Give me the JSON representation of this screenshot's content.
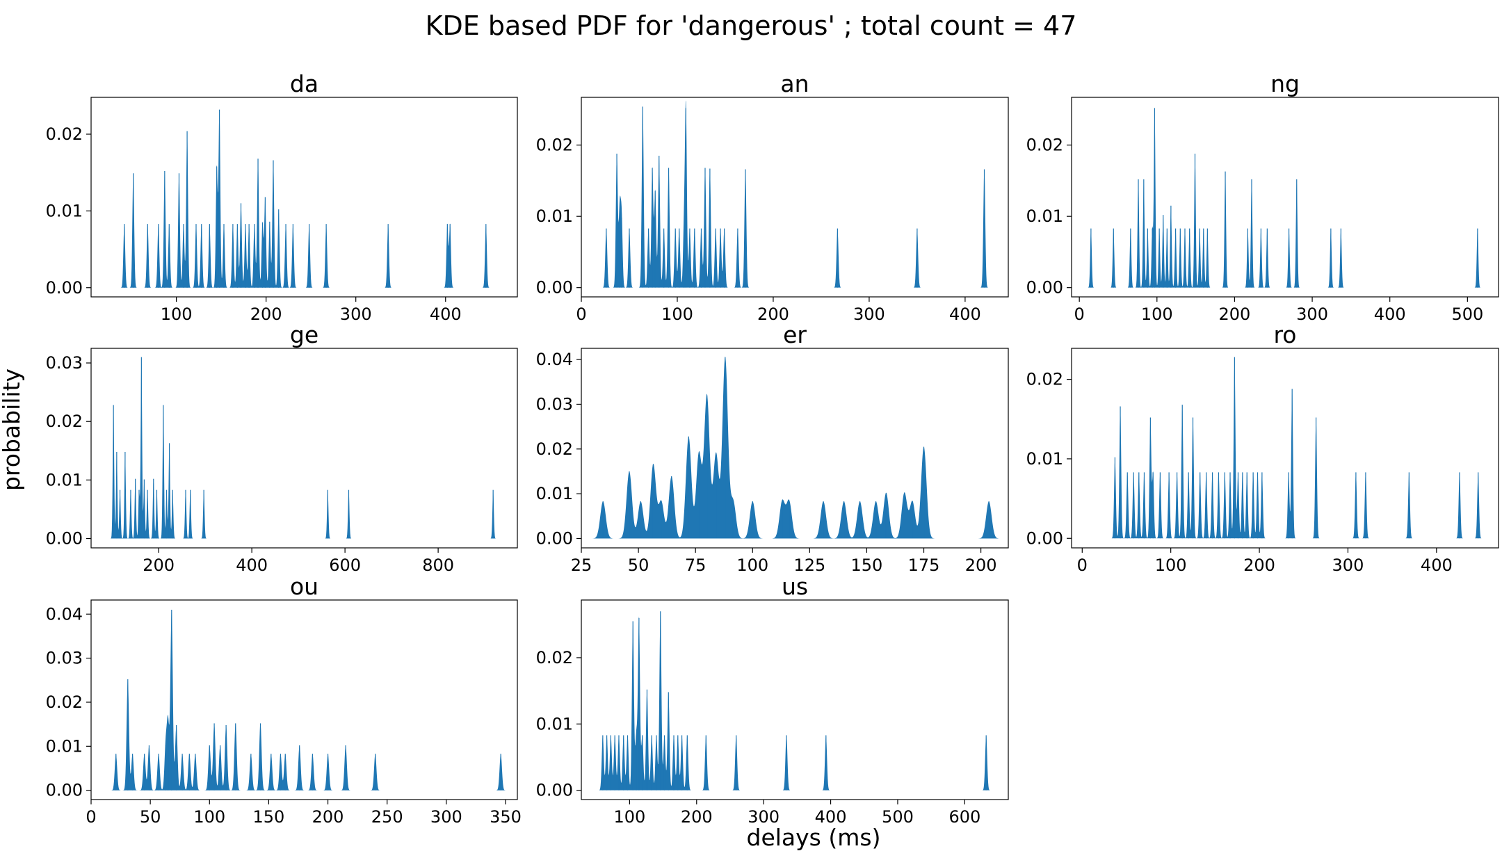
{
  "figure": {
    "title": "KDE based PDF for 'dangerous' ; total count = 47",
    "xlabel": "delays (ms)",
    "ylabel": "probability"
  },
  "chart_data": [
    {
      "type": "area",
      "title": "da",
      "color": "#1f77b4",
      "xlim": [
        5,
        480
      ],
      "ylim": [
        -0.0012,
        0.0248
      ],
      "xticks": [
        100,
        200,
        300,
        400
      ],
      "yticks": [
        0.0,
        0.01,
        0.02
      ],
      "ytick_labels": [
        "0.00",
        "0.01",
        "0.02"
      ],
      "bandwidth": 1.0,
      "peaks": [
        [
          42,
          0.0083
        ],
        [
          52,
          0.0149
        ],
        [
          68,
          0.0083
        ],
        [
          80,
          0.0083
        ],
        [
          87,
          0.0152
        ],
        [
          92,
          0.0083
        ],
        [
          103,
          0.0149
        ],
        [
          108,
          0.0083
        ],
        [
          112,
          0.0204
        ],
        [
          122,
          0.0083
        ],
        [
          128,
          0.0083
        ],
        [
          137,
          0.0083
        ],
        [
          145,
          0.0158
        ],
        [
          148,
          0.0232
        ],
        [
          153,
          0.0083
        ],
        [
          163,
          0.0083
        ],
        [
          168,
          0.0083
        ],
        [
          172,
          0.011
        ],
        [
          177,
          0.0083
        ],
        [
          181,
          0.0083
        ],
        [
          187,
          0.0083
        ],
        [
          191,
          0.0168
        ],
        [
          196,
          0.0085
        ],
        [
          199,
          0.0118
        ],
        [
          204,
          0.0086
        ],
        [
          208,
          0.0166
        ],
        [
          214,
          0.0102
        ],
        [
          222,
          0.0083
        ],
        [
          230,
          0.0083
        ],
        [
          248,
          0.0083
        ],
        [
          267,
          0.0083
        ],
        [
          336,
          0.0083
        ],
        [
          402,
          0.0083
        ],
        [
          405,
          0.0083
        ],
        [
          445,
          0.0083
        ]
      ]
    },
    {
      "type": "area",
      "title": "an",
      "color": "#1f77b4",
      "xlim": [
        0,
        445
      ],
      "ylim": [
        -0.0013,
        0.0267
      ],
      "xticks": [
        0,
        100,
        200,
        300,
        400
      ],
      "yticks": [
        0.0,
        0.01,
        0.02
      ],
      "ytick_labels": [
        "0.00",
        "0.01",
        "0.02"
      ],
      "bandwidth": 1.0,
      "peaks": [
        [
          26,
          0.0083
        ],
        [
          37,
          0.0188
        ],
        [
          40,
          0.011
        ],
        [
          42,
          0.0098
        ],
        [
          50,
          0.0083
        ],
        [
          64,
          0.0254
        ],
        [
          70,
          0.0083
        ],
        [
          74,
          0.0168
        ],
        [
          77,
          0.0136
        ],
        [
          81,
          0.0185
        ],
        [
          86,
          0.0083
        ],
        [
          91,
          0.0168
        ],
        [
          98,
          0.0083
        ],
        [
          102,
          0.0083
        ],
        [
          107,
          0.0083
        ],
        [
          109,
          0.0252
        ],
        [
          113,
          0.0083
        ],
        [
          118,
          0.0083
        ],
        [
          125,
          0.0083
        ],
        [
          129,
          0.0168
        ],
        [
          134,
          0.0167
        ],
        [
          140,
          0.0083
        ],
        [
          145,
          0.0083
        ],
        [
          149,
          0.0083
        ],
        [
          163,
          0.0083
        ],
        [
          171,
          0.0166
        ],
        [
          267,
          0.0083
        ],
        [
          350,
          0.0083
        ],
        [
          420,
          0.0166
        ]
      ]
    },
    {
      "type": "area",
      "title": "ng",
      "color": "#1f77b4",
      "xlim": [
        -10,
        540
      ],
      "ylim": [
        -0.0013,
        0.0267
      ],
      "xticks": [
        0,
        100,
        200,
        300,
        400,
        500
      ],
      "yticks": [
        0.0,
        0.01,
        0.02
      ],
      "ytick_labels": [
        "0.00",
        "0.01",
        "0.02"
      ],
      "bandwidth": 1.0,
      "peaks": [
        [
          15,
          0.0083
        ],
        [
          44,
          0.0083
        ],
        [
          66,
          0.0083
        ],
        [
          76,
          0.0152
        ],
        [
          83,
          0.0152
        ],
        [
          88,
          0.0083
        ],
        [
          94,
          0.0083
        ],
        [
          97,
          0.0252
        ],
        [
          103,
          0.0083
        ],
        [
          108,
          0.0102
        ],
        [
          113,
          0.0083
        ],
        [
          118,
          0.0115
        ],
        [
          124,
          0.0083
        ],
        [
          130,
          0.0083
        ],
        [
          136,
          0.0083
        ],
        [
          142,
          0.0083
        ],
        [
          149,
          0.0188
        ],
        [
          155,
          0.0083
        ],
        [
          160,
          0.0083
        ],
        [
          165,
          0.0083
        ],
        [
          188,
          0.0163
        ],
        [
          217,
          0.0083
        ],
        [
          222,
          0.0152
        ],
        [
          234,
          0.0083
        ],
        [
          242,
          0.0083
        ],
        [
          270,
          0.0083
        ],
        [
          280,
          0.0152
        ],
        [
          324,
          0.0083
        ],
        [
          337,
          0.0083
        ],
        [
          513,
          0.0083
        ]
      ]
    },
    {
      "type": "area",
      "title": "ge",
      "color": "#1f77b4",
      "xlim": [
        55,
        970
      ],
      "ylim": [
        -0.0016,
        0.0325
      ],
      "xticks": [
        200,
        400,
        600,
        800
      ],
      "yticks": [
        0.0,
        0.01,
        0.02,
        0.03
      ],
      "ytick_labels": [
        "0.00",
        "0.01",
        "0.02",
        "0.03"
      ],
      "bandwidth": 1.5,
      "peaks": [
        [
          103,
          0.0228
        ],
        [
          110,
          0.0148
        ],
        [
          117,
          0.0083
        ],
        [
          128,
          0.0148
        ],
        [
          140,
          0.0083
        ],
        [
          150,
          0.0102
        ],
        [
          158,
          0.0083
        ],
        [
          163,
          0.031
        ],
        [
          169,
          0.0101
        ],
        [
          176,
          0.0083
        ],
        [
          189,
          0.0102
        ],
        [
          196,
          0.0083
        ],
        [
          210,
          0.0228
        ],
        [
          217,
          0.0083
        ],
        [
          223,
          0.0163
        ],
        [
          230,
          0.0083
        ],
        [
          258,
          0.0083
        ],
        [
          268,
          0.0083
        ],
        [
          297,
          0.0083
        ],
        [
          563,
          0.0083
        ],
        [
          608,
          0.0083
        ],
        [
          918,
          0.0083
        ]
      ]
    },
    {
      "type": "area",
      "title": "er",
      "color": "#1f77b4",
      "xlim": [
        25,
        212
      ],
      "ylim": [
        -0.0021,
        0.0425
      ],
      "xticks": [
        25,
        50,
        75,
        100,
        125,
        150,
        175,
        200
      ],
      "yticks": [
        0.0,
        0.01,
        0.02,
        0.03,
        0.04
      ],
      "ytick_labels": [
        "0.00",
        "0.01",
        "0.02",
        "0.03",
        "0.04"
      ],
      "bandwidth": 1.2,
      "peaks": [
        [
          34.5,
          0.0083
        ],
        [
          46,
          0.015
        ],
        [
          51,
          0.0083
        ],
        [
          56.5,
          0.0166
        ],
        [
          60,
          0.0083
        ],
        [
          64.5,
          0.0139
        ],
        [
          72,
          0.0228
        ],
        [
          76.5,
          0.019
        ],
        [
          80,
          0.032
        ],
        [
          84,
          0.019
        ],
        [
          88,
          0.0405
        ],
        [
          91.5,
          0.0083
        ],
        [
          100,
          0.0083
        ],
        [
          113,
          0.0083
        ],
        [
          116,
          0.0083
        ],
        [
          131,
          0.0083
        ],
        [
          140,
          0.0083
        ],
        [
          147,
          0.0083
        ],
        [
          154,
          0.0083
        ],
        [
          158.5,
          0.0102
        ],
        [
          166.5,
          0.0102
        ],
        [
          170,
          0.0083
        ],
        [
          175,
          0.0205
        ],
        [
          203.5,
          0.0083
        ]
      ]
    },
    {
      "type": "area",
      "title": "ro",
      "color": "#1f77b4",
      "xlim": [
        -12,
        470
      ],
      "ylim": [
        -0.0012,
        0.0239
      ],
      "xticks": [
        0,
        100,
        200,
        300,
        400
      ],
      "yticks": [
        0.0,
        0.01,
        0.02
      ],
      "ytick_labels": [
        "0.00",
        "0.01",
        "0.02"
      ],
      "bandwidth": 1.0,
      "peaks": [
        [
          37,
          0.0102
        ],
        [
          43,
          0.0166
        ],
        [
          51,
          0.0083
        ],
        [
          58,
          0.0083
        ],
        [
          64,
          0.0083
        ],
        [
          70,
          0.0083
        ],
        [
          77,
          0.0152
        ],
        [
          80,
          0.0083
        ],
        [
          88,
          0.0083
        ],
        [
          98,
          0.0083
        ],
        [
          107,
          0.0083
        ],
        [
          113,
          0.0168
        ],
        [
          120,
          0.0083
        ],
        [
          125,
          0.0152
        ],
        [
          133,
          0.0083
        ],
        [
          140,
          0.0083
        ],
        [
          147,
          0.0083
        ],
        [
          154,
          0.0083
        ],
        [
          161,
          0.0083
        ],
        [
          167,
          0.0083
        ],
        [
          172,
          0.0228
        ],
        [
          176,
          0.0083
        ],
        [
          181,
          0.0083
        ],
        [
          186,
          0.0083
        ],
        [
          193,
          0.0083
        ],
        [
          198,
          0.0083
        ],
        [
          203,
          0.0083
        ],
        [
          233,
          0.0083
        ],
        [
          237,
          0.0188
        ],
        [
          264,
          0.0152
        ],
        [
          309,
          0.0083
        ],
        [
          320,
          0.0083
        ],
        [
          369,
          0.0083
        ],
        [
          426,
          0.0083
        ],
        [
          447,
          0.0083
        ]
      ]
    },
    {
      "type": "area",
      "title": "ou",
      "color": "#1f77b4",
      "xlim": [
        0,
        360
      ],
      "ylim": [
        -0.0021,
        0.0432
      ],
      "xticks": [
        0,
        50,
        100,
        150,
        200,
        250,
        300,
        350
      ],
      "yticks": [
        0.0,
        0.01,
        0.02,
        0.03,
        0.04
      ],
      "ytick_labels": [
        "0.00",
        "0.01",
        "0.02",
        "0.03",
        "0.04"
      ],
      "bandwidth": 1.0,
      "peaks": [
        [
          21,
          0.0083
        ],
        [
          31,
          0.0252
        ],
        [
          35,
          0.0083
        ],
        [
          45,
          0.0083
        ],
        [
          49,
          0.0102
        ],
        [
          57,
          0.0083
        ],
        [
          63,
          0.0102
        ],
        [
          65,
          0.0152
        ],
        [
          68,
          0.041
        ],
        [
          72,
          0.0148
        ],
        [
          77,
          0.0083
        ],
        [
          83,
          0.0083
        ],
        [
          88,
          0.0083
        ],
        [
          100,
          0.0102
        ],
        [
          104,
          0.0152
        ],
        [
          109,
          0.0102
        ],
        [
          114,
          0.0148
        ],
        [
          122,
          0.0152
        ],
        [
          135,
          0.0083
        ],
        [
          143,
          0.0152
        ],
        [
          152,
          0.0083
        ],
        [
          160,
          0.0083
        ],
        [
          164,
          0.0083
        ],
        [
          176,
          0.0102
        ],
        [
          187,
          0.0083
        ],
        [
          200,
          0.0083
        ],
        [
          215,
          0.0102
        ],
        [
          240,
          0.0083
        ],
        [
          346,
          0.0083
        ]
      ]
    },
    {
      "type": "area",
      "title": "us",
      "color": "#1f77b4",
      "xlim": [
        28,
        665
      ],
      "ylim": [
        -0.0014,
        0.0287
      ],
      "xticks": [
        100,
        200,
        300,
        400,
        500,
        600
      ],
      "yticks": [
        0.0,
        0.01,
        0.02
      ],
      "ytick_labels": [
        "0.00",
        "0.01",
        "0.02"
      ],
      "bandwidth": 1.5,
      "peaks": [
        [
          60,
          0.0083
        ],
        [
          66,
          0.0083
        ],
        [
          72,
          0.0083
        ],
        [
          78,
          0.0083
        ],
        [
          84,
          0.0083
        ],
        [
          91,
          0.0083
        ],
        [
          97,
          0.0083
        ],
        [
          105,
          0.0255
        ],
        [
          110,
          0.0083
        ],
        [
          114,
          0.026
        ],
        [
          119,
          0.0083
        ],
        [
          126,
          0.0152
        ],
        [
          133,
          0.0083
        ],
        [
          140,
          0.0083
        ],
        [
          146,
          0.027
        ],
        [
          152,
          0.0083
        ],
        [
          158,
          0.0148
        ],
        [
          166,
          0.0083
        ],
        [
          172,
          0.0083
        ],
        [
          178,
          0.0083
        ],
        [
          186,
          0.0083
        ],
        [
          214,
          0.0083
        ],
        [
          259,
          0.0083
        ],
        [
          334,
          0.0083
        ],
        [
          393,
          0.0083
        ],
        [
          632,
          0.0083
        ]
      ]
    }
  ]
}
